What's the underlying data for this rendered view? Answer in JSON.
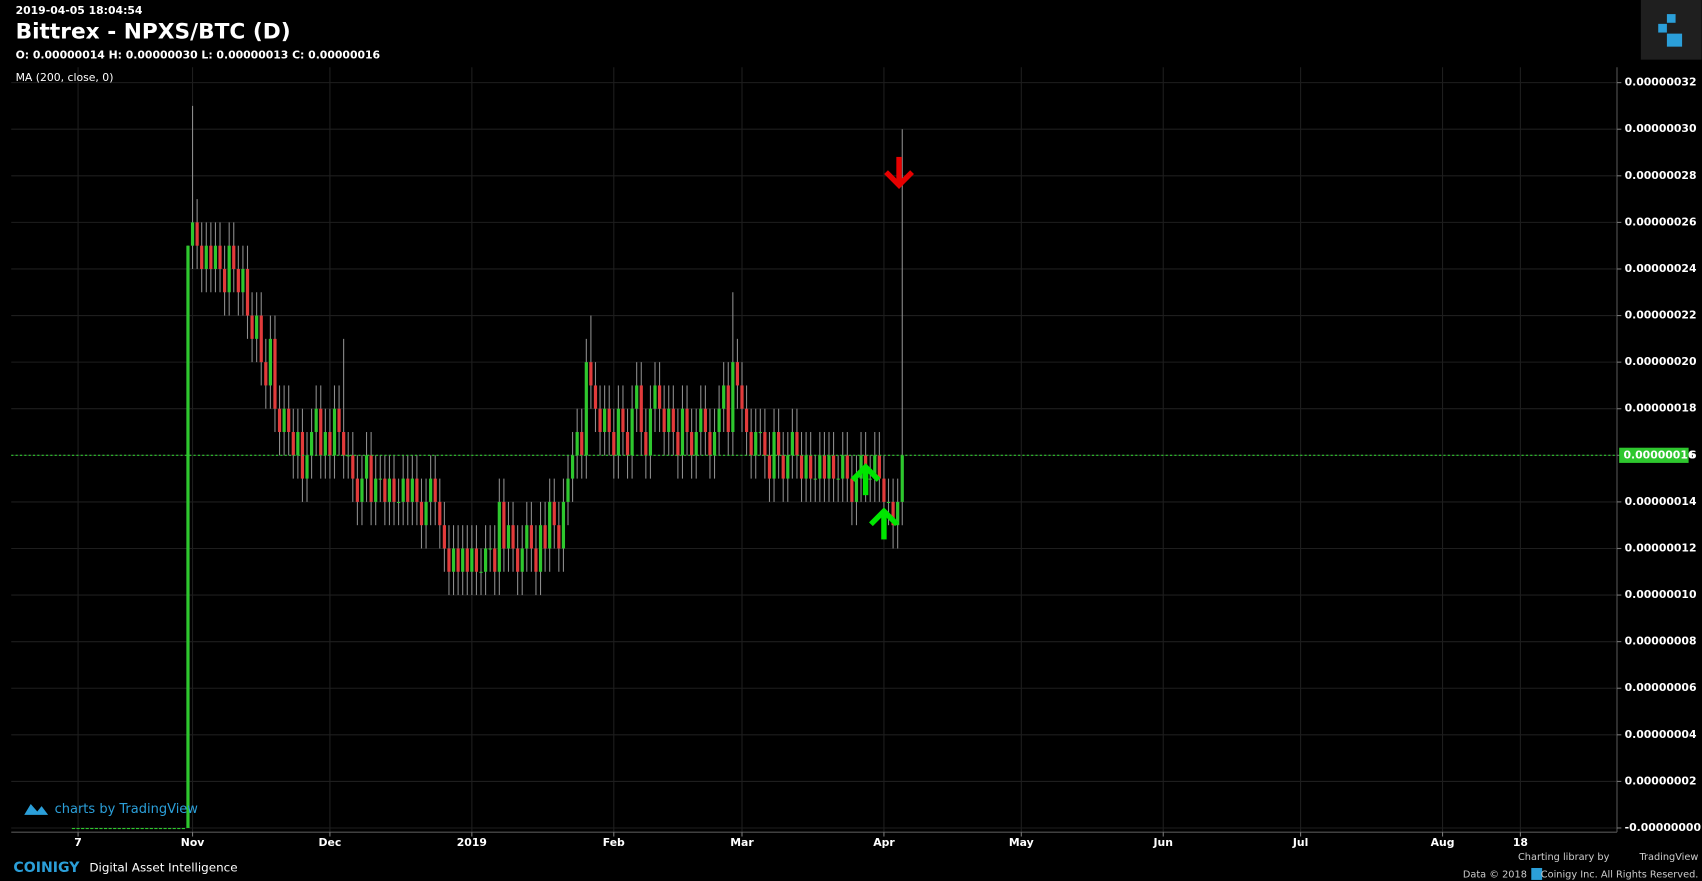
{
  "chart_data": {
    "type": "candlestick",
    "timestamp": "2019-04-05 18:04:54",
    "title": "Bittrex - NPXS/BTC (D)",
    "ohlc_text": "O: 0.00000014 H: 0.00000030 L: 0.00000013 C: 0.00000016",
    "indicator": "MA (200, close, 0)",
    "watermark": "charts by TradingView",
    "up_color": "#2ec72e",
    "down_color": "#e23b3b",
    "wick_color": "#8c8c8c",
    "grid": true,
    "xlim": [
      -39.6,
      311.1
    ],
    "xticks": [
      {
        "value": -25,
        "label": "7"
      },
      {
        "value": 0,
        "label": "Nov"
      },
      {
        "value": 30,
        "label": "Dec"
      },
      {
        "value": 61,
        "label": "2019"
      },
      {
        "value": 92,
        "label": "Feb"
      },
      {
        "value": 120,
        "label": "Mar"
      },
      {
        "value": 151,
        "label": "Apr"
      },
      {
        "value": 181,
        "label": "May"
      },
      {
        "value": 212,
        "label": "Jun"
      },
      {
        "value": 242,
        "label": "Jul"
      },
      {
        "value": 273,
        "label": "Aug"
      },
      {
        "value": 290,
        "label": "18"
      }
    ],
    "ylim": [
      -1.8e-09,
      3.266e-07
    ],
    "yticks": [
      {
        "value": 0,
        "label": "-0.00000000"
      },
      {
        "value": 2e-08,
        "label": "0.00000002"
      },
      {
        "value": 4e-08,
        "label": "0.00000004"
      },
      {
        "value": 6e-08,
        "label": "0.00000006"
      },
      {
        "value": 8e-08,
        "label": "0.00000008"
      },
      {
        "value": 1e-07,
        "label": "0.00000010"
      },
      {
        "value": 1.2e-07,
        "label": "0.00000012"
      },
      {
        "value": 1.4e-07,
        "label": "0.00000014"
      },
      {
        "value": 1.6e-07,
        "label": "0.00000016"
      },
      {
        "value": 1.8e-07,
        "label": "0.00000018"
      },
      {
        "value": 2e-07,
        "label": "0.00000020"
      },
      {
        "value": 2.2e-07,
        "label": "0.00000022"
      },
      {
        "value": 2.4e-07,
        "label": "0.00000024"
      },
      {
        "value": 2.6e-07,
        "label": "0.00000026"
      },
      {
        "value": 2.8e-07,
        "label": "0.00000028"
      },
      {
        "value": 3e-07,
        "label": "0.00000030"
      },
      {
        "value": 3.2e-07,
        "label": "0.00000032"
      }
    ],
    "last_price": {
      "value": 1.6e-07,
      "label": "0.00000016",
      "color": "#2ec72e"
    },
    "markers": [
      {
        "x": 147,
        "y": 1.55e-07,
        "direction": "up",
        "color": "#00e600"
      },
      {
        "x": 151,
        "y": 1.36e-07,
        "direction": "up",
        "color": "#00e600"
      },
      {
        "x": 154.3,
        "y": 2.76e-07,
        "direction": "down",
        "color": "#e60000"
      }
    ],
    "x": [
      -26,
      -25,
      -24,
      -23,
      -22,
      -21,
      -20,
      -19,
      -18,
      -17,
      -16,
      -15,
      -14,
      -13,
      -12,
      -11,
      -10,
      -9,
      -8,
      -7,
      -6,
      -5,
      -4,
      -3,
      -2,
      -1,
      0,
      1,
      2,
      3,
      4,
      5,
      6,
      7,
      8,
      9,
      10,
      11,
      12,
      13,
      14,
      15,
      16,
      17,
      18,
      19,
      20,
      21,
      22,
      23,
      24,
      25,
      26,
      27,
      28,
      29,
      30,
      31,
      32,
      33,
      34,
      35,
      36,
      37,
      38,
      39,
      40,
      41,
      42,
      43,
      44,
      45,
      46,
      47,
      48,
      49,
      50,
      51,
      52,
      53,
      54,
      55,
      56,
      57,
      58,
      59,
      60,
      61,
      62,
      63,
      64,
      65,
      66,
      67,
      68,
      69,
      70,
      71,
      72,
      73,
      74,
      75,
      76,
      77,
      78,
      79,
      80,
      81,
      82,
      83,
      84,
      85,
      86,
      87,
      88,
      89,
      90,
      91,
      92,
      93,
      94,
      95,
      96,
      97,
      98,
      99,
      100,
      101,
      102,
      103,
      104,
      105,
      106,
      107,
      108,
      109,
      110,
      111,
      112,
      113,
      114,
      115,
      116,
      117,
      118,
      119,
      120,
      121,
      122,
      123,
      124,
      125,
      126,
      127,
      128,
      129,
      130,
      131,
      132,
      133,
      134,
      135,
      136,
      137,
      138,
      139,
      140,
      141,
      142,
      143,
      144,
      145,
      146,
      147,
      148,
      149,
      150,
      151,
      152,
      153,
      154,
      155
    ],
    "open": [
      0,
      0,
      0,
      0,
      0,
      0,
      0,
      0,
      0,
      0,
      0,
      0,
      0,
      0,
      0,
      0,
      0,
      0,
      0,
      0,
      0,
      0,
      0,
      0,
      0,
      0,
      2.5e-07,
      2.6e-07,
      2.5e-07,
      2.4e-07,
      2.5e-07,
      2.4e-07,
      2.5e-07,
      2.4e-07,
      2.3e-07,
      2.5e-07,
      2.4e-07,
      2.3e-07,
      2.4e-07,
      2.2e-07,
      2.1e-07,
      2.2e-07,
      2e-07,
      1.9e-07,
      2.1e-07,
      1.8e-07,
      1.7e-07,
      1.8e-07,
      1.7e-07,
      1.6e-07,
      1.7e-07,
      1.5e-07,
      1.6e-07,
      1.7e-07,
      1.8e-07,
      1.6e-07,
      1.7e-07,
      1.6e-07,
      1.8e-07,
      1.7e-07,
      1.6e-07,
      1.6e-07,
      1.5e-07,
      1.4e-07,
      1.5e-07,
      1.6e-07,
      1.4e-07,
      1.5e-07,
      1.5e-07,
      1.4e-07,
      1.5e-07,
      1.4e-07,
      1.4e-07,
      1.5e-07,
      1.4e-07,
      1.5e-07,
      1.4e-07,
      1.3e-07,
      1.4e-07,
      1.5e-07,
      1.4e-07,
      1.3e-07,
      1.2e-07,
      1.1e-07,
      1.2e-07,
      1.1e-07,
      1.2e-07,
      1.1e-07,
      1.2e-07,
      1.1e-07,
      1.1e-07,
      1.2e-07,
      1.2e-07,
      1.1e-07,
      1.4e-07,
      1.2e-07,
      1.3e-07,
      1.2e-07,
      1.1e-07,
      1.2e-07,
      1.3e-07,
      1.2e-07,
      1.1e-07,
      1.3e-07,
      1.2e-07,
      1.4e-07,
      1.3e-07,
      1.2e-07,
      1.4e-07,
      1.5e-07,
      1.6e-07,
      1.7e-07,
      1.6e-07,
      2e-07,
      1.9e-07,
      1.8e-07,
      1.7e-07,
      1.8e-07,
      1.7e-07,
      1.6e-07,
      1.8e-07,
      1.7e-07,
      1.6e-07,
      1.8e-07,
      1.9e-07,
      1.7e-07,
      1.6e-07,
      1.8e-07,
      1.9e-07,
      1.8e-07,
      1.7e-07,
      1.8e-07,
      1.7e-07,
      1.6e-07,
      1.8e-07,
      1.7e-07,
      1.6e-07,
      1.7e-07,
      1.8e-07,
      1.7e-07,
      1.6e-07,
      1.7e-07,
      1.8e-07,
      1.9e-07,
      1.7e-07,
      2e-07,
      1.9e-07,
      1.8e-07,
      1.7e-07,
      1.6e-07,
      1.7e-07,
      1.7e-07,
      1.6e-07,
      1.5e-07,
      1.7e-07,
      1.6e-07,
      1.5e-07,
      1.6e-07,
      1.7e-07,
      1.6e-07,
      1.5e-07,
      1.6e-07,
      1.5e-07,
      1.5e-07,
      1.6e-07,
      1.5e-07,
      1.6e-07,
      1.5e-07,
      1.5e-07,
      1.6e-07,
      1.5e-07,
      1.4e-07,
      1.5e-07,
      1.6e-07,
      1.5e-07,
      1.5e-07,
      1.6e-07,
      1.5e-07,
      1.4e-07,
      1.4e-07,
      1.3e-07,
      1.4e-07
    ],
    "high": [
      0,
      0,
      0,
      0,
      0,
      0,
      0,
      0,
      0,
      0,
      0,
      0,
      0,
      0,
      0,
      0,
      0,
      0,
      0,
      0,
      0,
      0,
      0,
      0,
      0,
      2.5e-07,
      3.1e-07,
      2.7e-07,
      2.6e-07,
      2.6e-07,
      2.6e-07,
      2.6e-07,
      2.6e-07,
      2.5e-07,
      2.6e-07,
      2.6e-07,
      2.5e-07,
      2.5e-07,
      2.5e-07,
      2.3e-07,
      2.3e-07,
      2.3e-07,
      2.1e-07,
      2.2e-07,
      2.2e-07,
      1.9e-07,
      1.9e-07,
      1.9e-07,
      1.8e-07,
      1.8e-07,
      1.8e-07,
      1.7e-07,
      1.8e-07,
      1.9e-07,
      1.9e-07,
      1.8e-07,
      1.8e-07,
      1.9e-07,
      1.9e-07,
      2.1e-07,
      1.7e-07,
      1.7e-07,
      1.6e-07,
      1.6e-07,
      1.7e-07,
      1.7e-07,
      1.6e-07,
      1.6e-07,
      1.6e-07,
      1.6e-07,
      1.6e-07,
      1.5e-07,
      1.6e-07,
      1.6e-07,
      1.6e-07,
      1.6e-07,
      1.5e-07,
      1.5e-07,
      1.6e-07,
      1.6e-07,
      1.5e-07,
      1.4e-07,
      1.3e-07,
      1.3e-07,
      1.3e-07,
      1.3e-07,
      1.3e-07,
      1.3e-07,
      1.3e-07,
      1.2e-07,
      1.3e-07,
      1.3e-07,
      1.3e-07,
      1.5e-07,
      1.5e-07,
      1.4e-07,
      1.4e-07,
      1.3e-07,
      1.3e-07,
      1.4e-07,
      1.4e-07,
      1.3e-07,
      1.4e-07,
      1.4e-07,
      1.5e-07,
      1.5e-07,
      1.4e-07,
      1.5e-07,
      1.6e-07,
      1.7e-07,
      1.8e-07,
      1.8e-07,
      2.1e-07,
      2.2e-07,
      2e-07,
      1.9e-07,
      1.9e-07,
      1.9e-07,
      1.8e-07,
      1.9e-07,
      1.9e-07,
      1.8e-07,
      1.9e-07,
      2e-07,
      2e-07,
      1.8e-07,
      1.9e-07,
      2e-07,
      2e-07,
      1.9e-07,
      1.9e-07,
      1.9e-07,
      1.8e-07,
      1.9e-07,
      1.9e-07,
      1.8e-07,
      1.8e-07,
      1.9e-07,
      1.9e-07,
      1.8e-07,
      1.8e-07,
      1.9e-07,
      2e-07,
      2e-07,
      2.3e-07,
      2.1e-07,
      2e-07,
      1.9e-07,
      1.8e-07,
      1.8e-07,
      1.8e-07,
      1.8e-07,
      1.7e-07,
      1.8e-07,
      1.8e-07,
      1.7e-07,
      1.7e-07,
      1.8e-07,
      1.8e-07,
      1.7e-07,
      1.7e-07,
      1.7e-07,
      1.6e-07,
      1.7e-07,
      1.7e-07,
      1.7e-07,
      1.7e-07,
      1.6e-07,
      1.7e-07,
      1.7e-07,
      1.6e-07,
      1.6e-07,
      1.7e-07,
      1.7e-07,
      1.6e-07,
      1.7e-07,
      1.7e-07,
      1.6e-07,
      1.5e-07,
      1.5e-07,
      1.5e-07,
      3e-07
    ],
    "low": [
      0,
      0,
      0,
      0,
      0,
      0,
      0,
      0,
      0,
      0,
      0,
      0,
      0,
      0,
      0,
      0,
      0,
      0,
      0,
      0,
      0,
      0,
      0,
      0,
      0,
      0,
      2.4e-07,
      2.4e-07,
      2.3e-07,
      2.3e-07,
      2.3e-07,
      2.3e-07,
      2.3e-07,
      2.2e-07,
      2.2e-07,
      2.3e-07,
      2.2e-07,
      2.2e-07,
      2.1e-07,
      2e-07,
      2e-07,
      1.9e-07,
      1.8e-07,
      1.8e-07,
      1.7e-07,
      1.6e-07,
      1.6e-07,
      1.6e-07,
      1.5e-07,
      1.5e-07,
      1.4e-07,
      1.4e-07,
      1.5e-07,
      1.6e-07,
      1.5e-07,
      1.5e-07,
      1.5e-07,
      1.5e-07,
      1.6e-07,
      1.5e-07,
      1.5e-07,
      1.4e-07,
      1.3e-07,
      1.3e-07,
      1.4e-07,
      1.3e-07,
      1.3e-07,
      1.4e-07,
      1.3e-07,
      1.3e-07,
      1.3e-07,
      1.3e-07,
      1.3e-07,
      1.3e-07,
      1.3e-07,
      1.3e-07,
      1.2e-07,
      1.2e-07,
      1.3e-07,
      1.3e-07,
      1.2e-07,
      1.1e-07,
      1e-07,
      1e-07,
      1e-07,
      1e-07,
      1e-07,
      1e-07,
      1e-07,
      1e-07,
      1e-07,
      1.1e-07,
      1e-07,
      1e-07,
      1.1e-07,
      1.1e-07,
      1.1e-07,
      1e-07,
      1e-07,
      1.1e-07,
      1.1e-07,
      1e-07,
      1e-07,
      1.1e-07,
      1.1e-07,
      1.2e-07,
      1.1e-07,
      1.1e-07,
      1.3e-07,
      1.4e-07,
      1.5e-07,
      1.5e-07,
      1.5e-07,
      1.8e-07,
      1.7e-07,
      1.6e-07,
      1.6e-07,
      1.6e-07,
      1.5e-07,
      1.5e-07,
      1.6e-07,
      1.5e-07,
      1.5e-07,
      1.7e-07,
      1.6e-07,
      1.5e-07,
      1.5e-07,
      1.7e-07,
      1.7e-07,
      1.6e-07,
      1.6e-07,
      1.6e-07,
      1.5e-07,
      1.5e-07,
      1.6e-07,
      1.5e-07,
      1.5e-07,
      1.6e-07,
      1.6e-07,
      1.5e-07,
      1.5e-07,
      1.6e-07,
      1.7e-07,
      1.6e-07,
      1.6e-07,
      1.8e-07,
      1.7e-07,
      1.6e-07,
      1.5e-07,
      1.5e-07,
      1.6e-07,
      1.5e-07,
      1.4e-07,
      1.4e-07,
      1.5e-07,
      1.4e-07,
      1.4e-07,
      1.5e-07,
      1.5e-07,
      1.4e-07,
      1.4e-07,
      1.4e-07,
      1.4e-07,
      1.4e-07,
      1.4e-07,
      1.4e-07,
      1.4e-07,
      1.4e-07,
      1.4e-07,
      1.4e-07,
      1.3e-07,
      1.3e-07,
      1.4e-07,
      1.4e-07,
      1.4e-07,
      1.4e-07,
      1.4e-07,
      1.3e-07,
      1.3e-07,
      1.2e-07,
      1.2e-07,
      1.3e-07
    ],
    "close": [
      0,
      0,
      0,
      0,
      0,
      0,
      0,
      0,
      0,
      0,
      0,
      0,
      0,
      0,
      0,
      0,
      0,
      0,
      0,
      0,
      0,
      0,
      0,
      0,
      0,
      2.5e-07,
      2.6e-07,
      2.5e-07,
      2.4e-07,
      2.5e-07,
      2.4e-07,
      2.5e-07,
      2.4e-07,
      2.3e-07,
      2.5e-07,
      2.4e-07,
      2.3e-07,
      2.4e-07,
      2.2e-07,
      2.1e-07,
      2.2e-07,
      2e-07,
      1.9e-07,
      2.1e-07,
      1.8e-07,
      1.7e-07,
      1.8e-07,
      1.7e-07,
      1.6e-07,
      1.7e-07,
      1.5e-07,
      1.6e-07,
      1.7e-07,
      1.8e-07,
      1.6e-07,
      1.7e-07,
      1.6e-07,
      1.8e-07,
      1.7e-07,
      1.6e-07,
      1.6e-07,
      1.5e-07,
      1.4e-07,
      1.5e-07,
      1.6e-07,
      1.4e-07,
      1.5e-07,
      1.5e-07,
      1.4e-07,
      1.5e-07,
      1.4e-07,
      1.4e-07,
      1.5e-07,
      1.4e-07,
      1.5e-07,
      1.4e-07,
      1.3e-07,
      1.4e-07,
      1.5e-07,
      1.4e-07,
      1.3e-07,
      1.2e-07,
      1.1e-07,
      1.2e-07,
      1.1e-07,
      1.2e-07,
      1.1e-07,
      1.2e-07,
      1.1e-07,
      1.1e-07,
      1.2e-07,
      1.2e-07,
      1.1e-07,
      1.4e-07,
      1.2e-07,
      1.3e-07,
      1.2e-07,
      1.1e-07,
      1.2e-07,
      1.3e-07,
      1.2e-07,
      1.1e-07,
      1.3e-07,
      1.2e-07,
      1.4e-07,
      1.3e-07,
      1.2e-07,
      1.4e-07,
      1.5e-07,
      1.6e-07,
      1.7e-07,
      1.6e-07,
      2e-07,
      1.9e-07,
      1.8e-07,
      1.7e-07,
      1.8e-07,
      1.7e-07,
      1.6e-07,
      1.8e-07,
      1.7e-07,
      1.6e-07,
      1.8e-07,
      1.9e-07,
      1.7e-07,
      1.6e-07,
      1.8e-07,
      1.9e-07,
      1.8e-07,
      1.7e-07,
      1.8e-07,
      1.7e-07,
      1.6e-07,
      1.8e-07,
      1.7e-07,
      1.6e-07,
      1.7e-07,
      1.8e-07,
      1.7e-07,
      1.6e-07,
      1.7e-07,
      1.8e-07,
      1.9e-07,
      1.7e-07,
      2e-07,
      1.9e-07,
      1.8e-07,
      1.7e-07,
      1.6e-07,
      1.7e-07,
      1.7e-07,
      1.6e-07,
      1.5e-07,
      1.7e-07,
      1.6e-07,
      1.5e-07,
      1.6e-07,
      1.7e-07,
      1.6e-07,
      1.5e-07,
      1.6e-07,
      1.5e-07,
      1.5e-07,
      1.6e-07,
      1.5e-07,
      1.6e-07,
      1.5e-07,
      1.5e-07,
      1.6e-07,
      1.5e-07,
      1.4e-07,
      1.5e-07,
      1.6e-07,
      1.5e-07,
      1.5e-07,
      1.6e-07,
      1.5e-07,
      1.4e-07,
      1.4e-07,
      1.3e-07,
      1.4e-07,
      1.6e-07
    ]
  },
  "footer": {
    "brand": "COINIGY",
    "tagline": "Digital Asset Intelligence",
    "library": "Charting library by",
    "library_name": "TradingView",
    "data_note": "Data © 2018",
    "rights": "Coinigy Inc. All Rights Reserved."
  }
}
